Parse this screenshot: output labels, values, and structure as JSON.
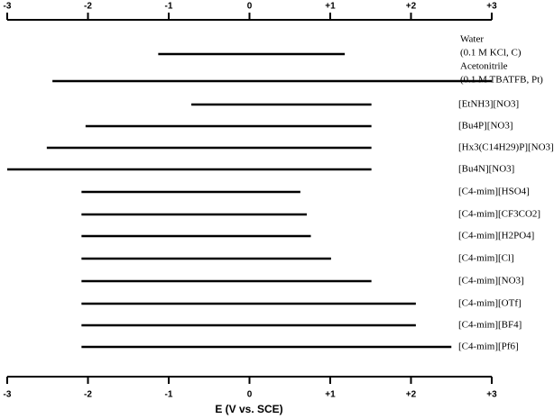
{
  "chart_data": {
    "type": "range-bar",
    "x_label": "E (V vs. SCE)",
    "categories": [
      [
        "Water",
        "(0.1 M KCl, C)"
      ],
      [
        "Acetonitrile",
        "(0.1 M TBATFB, Pt)"
      ],
      "[EtNH3][NO3]",
      "[Bu4P][NO3]",
      "[Hx3(C14H29)P][NO3]",
      "[Bu4N][NO3]",
      "[C4-mim][HSO4]",
      "[C4-mim][CF3CO2]",
      "[C4-mim][H2PO4]",
      "[C4-mim][Cl]",
      "[C4-mim][NO3]",
      "[C4-mim][OTf]",
      "[C4-mim][BF4]",
      "[C4-mim][Pf6]"
    ],
    "values": [
      [
        -1.13,
        1.18
      ],
      [
        -2.44,
        3.0
      ],
      [
        -0.72,
        1.51
      ],
      [
        -2.03,
        1.51
      ],
      [
        -2.51,
        1.51
      ],
      [
        -3.0,
        1.51
      ],
      [
        -2.08,
        0.63
      ],
      [
        -2.08,
        0.71
      ],
      [
        -2.08,
        0.76
      ],
      [
        -2.08,
        1.01
      ],
      [
        -2.08,
        1.51
      ],
      [
        -2.08,
        2.06
      ],
      [
        -2.08,
        2.06
      ],
      [
        -2.08,
        2.5
      ]
    ],
    "color": "#000000",
    "xlim": [
      -3,
      3
    ],
    "xticks": [
      -3,
      -2,
      -1,
      0,
      {
        "value": 1,
        "label": "+1"
      },
      {
        "value": 2,
        "label": "+2"
      },
      {
        "value": 3,
        "label": "+3"
      }
    ]
  }
}
